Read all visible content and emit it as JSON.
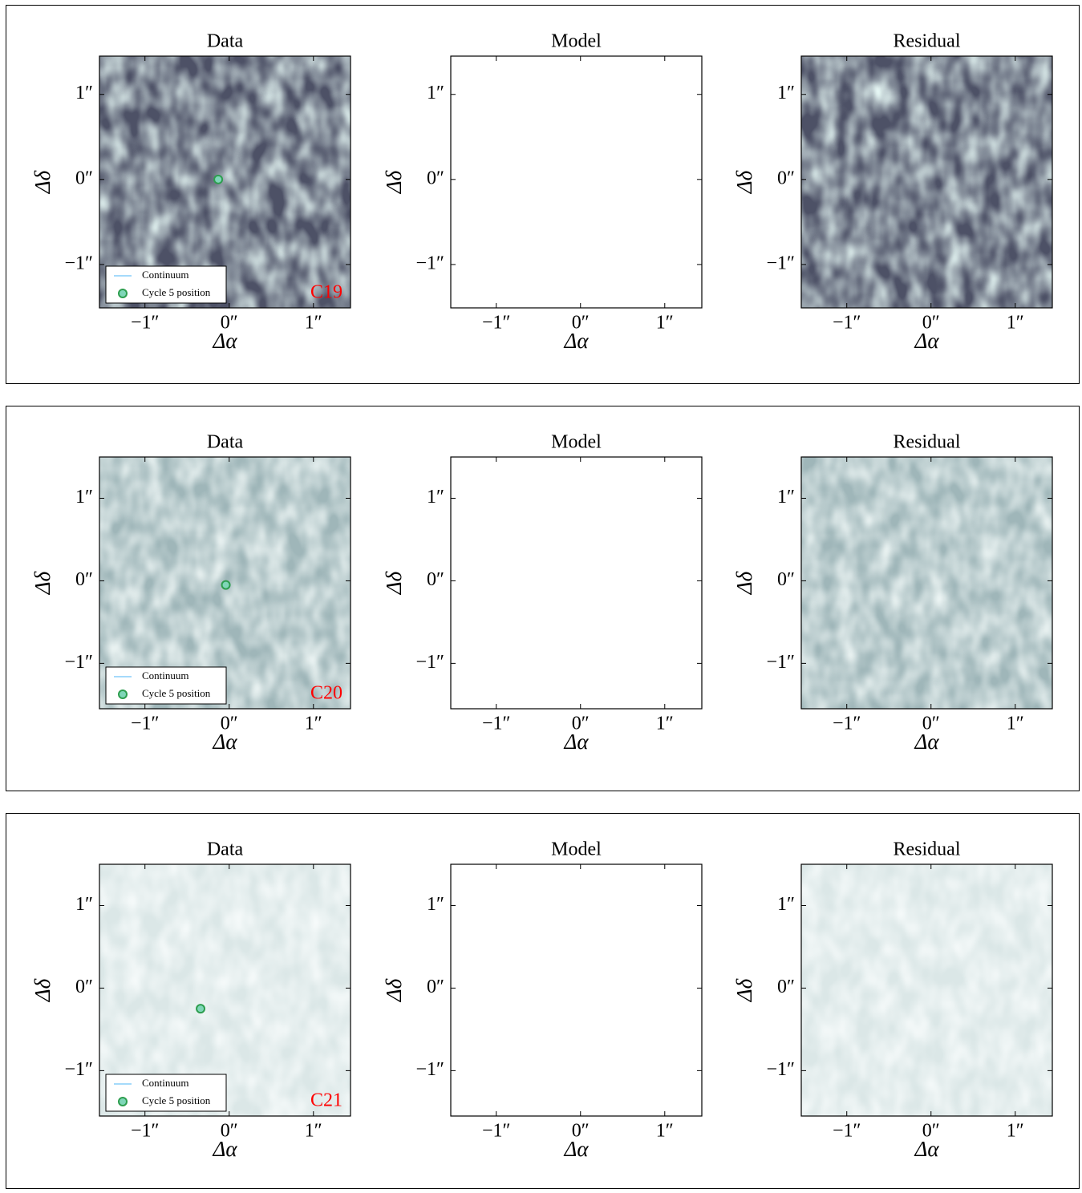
{
  "chart_data": [
    {
      "type": "image",
      "label": "C19",
      "label_color": "#ff0000",
      "panels": [
        "Data",
        "Model",
        "Residual"
      ],
      "xlabel": "Δα",
      "ylabel": "Δδ",
      "xlim": [
        -1.54,
        1.44
      ],
      "ylim": [
        -1.51,
        1.45
      ],
      "xticks": [
        {
          "value": -1,
          "label": "−1″"
        },
        {
          "value": 0,
          "label": "0″"
        },
        {
          "value": 1,
          "label": "1″"
        }
      ],
      "yticks": [
        {
          "value": -1,
          "label": "−1″"
        },
        {
          "value": 0,
          "label": "0″"
        },
        {
          "value": 1,
          "label": "1″"
        }
      ],
      "legend": "lower left",
      "series": [
        {
          "name": "Continuum",
          "color": "#87cefa"
        },
        {
          "name": "Cycle 5 position",
          "color": "#2e9e4f",
          "x": [
            -0.13
          ],
          "y": [
            0.0
          ]
        }
      ]
    },
    {
      "type": "image",
      "label": "C20",
      "label_color": "#ff0000",
      "panels": [
        "Data",
        "Model",
        "Residual"
      ],
      "xlabel": "Δα",
      "ylabel": "Δδ",
      "xlim": [
        -1.54,
        1.44
      ],
      "ylim": [
        -1.55,
        1.5
      ],
      "xticks": [
        {
          "value": -1,
          "label": "−1″"
        },
        {
          "value": 0,
          "label": "0″"
        },
        {
          "value": 1,
          "label": "1″"
        }
      ],
      "yticks": [
        {
          "value": -1,
          "label": "−1″"
        },
        {
          "value": 0,
          "label": "0″"
        },
        {
          "value": 1,
          "label": "1″"
        }
      ],
      "legend": "lower left",
      "series": [
        {
          "name": "Continuum",
          "color": "#87cefa"
        },
        {
          "name": "Cycle 5 position",
          "color": "#2e9e4f",
          "x": [
            -0.04
          ],
          "y": [
            -0.05
          ]
        }
      ]
    },
    {
      "type": "image",
      "label": "C21",
      "label_color": "#ff0000",
      "panels": [
        "Data",
        "Model",
        "Residual"
      ],
      "xlabel": "Δα",
      "ylabel": "Δδ",
      "xlim": [
        -1.54,
        1.44
      ],
      "ylim": [
        -1.55,
        1.5
      ],
      "xticks": [
        {
          "value": -1,
          "label": "−1″"
        },
        {
          "value": 0,
          "label": "0″"
        },
        {
          "value": 1,
          "label": "1″"
        }
      ],
      "yticks": [
        {
          "value": -1,
          "label": "−1″"
        },
        {
          "value": 0,
          "label": "0″"
        },
        {
          "value": 1,
          "label": "1″"
        }
      ],
      "legend": "lower left",
      "series": [
        {
          "name": "Continuum",
          "color": "#87cefa"
        },
        {
          "name": "Cycle 5 position",
          "color": "#2e9e4f",
          "x": [
            -0.34
          ],
          "y": [
            -0.25
          ]
        }
      ]
    }
  ]
}
